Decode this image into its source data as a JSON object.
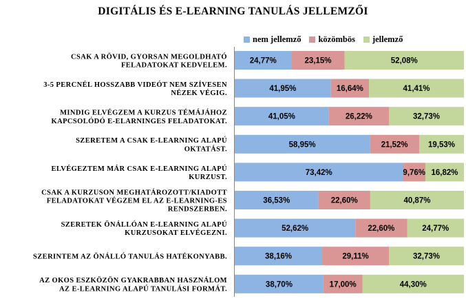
{
  "chart_data": {
    "type": "bar",
    "orientation": "horizontal",
    "stacked": "percent",
    "title": "DIGITÁLIS ÉS E-LEARNING TANULÁS JELLEMZŐI",
    "legend_position": "top",
    "grid": false,
    "xlim": [
      0,
      100
    ],
    "categories": [
      [
        "CSAK A RÖVID, GYORSAN MEGOLDHATÓ",
        "FELADATOKAT KEDVELEM."
      ],
      [
        "3-5 PERCNÉL HOSSZABB VIDEÓT NEM SZÍVESEN",
        "NÉZEK VÉGIG."
      ],
      [
        "MINDIG ELVÉGZEM A KURZUS TÉMÁJÁHOZ",
        "KAPCSOLÓDÓ E-ELARNINGES FELADATOKAT."
      ],
      [
        "SZERETEM A CSAK E-LEARNING  ALAPÚ",
        "OKTATÁST."
      ],
      [
        "ELVÉGEZTEM MÁR CSAK E-LEARNING ALAPÚ",
        "KURZUST."
      ],
      [
        "CSAK A KURZUSON MEGHATÁROZOTT/KIADOTT",
        "FELADATOKAT VÉGZEM EL AZ E-LEARNING-ES",
        "RENDSZERBEN."
      ],
      [
        "SZERETEK ÖNÁLLÓAN E-LEARNING ALAPÚ",
        "KURZUSOKAT ELVÉGEZNI."
      ],
      [
        "SZERINTEM AZ ÖNÁLLÓ TANULÁS HATÉKONYABB."
      ],
      [
        "AZ OKOS ESZKÖZÖN GYAKRABBAN HASZNÁLOM",
        "AZ E-LEARNING ALAPÚ TANULÁSI FORMÁT."
      ]
    ],
    "series": [
      {
        "name": "nem jellemző",
        "color": "#8EB4E3",
        "values": [
          24.77,
          41.95,
          41.05,
          58.95,
          73.42,
          36.53,
          52.62,
          38.16,
          38.7
        ],
        "labels": [
          "24,77%",
          "41,95%",
          "41,05%",
          "58,95%",
          "73,42%",
          "36,53%",
          "52,62%",
          "38,16%",
          "38,70%"
        ]
      },
      {
        "name": "közömbös",
        "color": "#D99694",
        "values": [
          23.15,
          16.64,
          26.22,
          21.52,
          9.76,
          22.6,
          22.6,
          29.11,
          17.0
        ],
        "labels": [
          "23,15%",
          "16,64%",
          "26,22%",
          "21,52%",
          "9,76%",
          "22,60%",
          "22,60%",
          "29,11%",
          "17,00%"
        ]
      },
      {
        "name": "jellemző",
        "color": "#C3D69B",
        "values": [
          52.08,
          41.41,
          32.73,
          19.53,
          16.82,
          40.87,
          24.77,
          32.73,
          44.3
        ],
        "labels": [
          "52,08%",
          "41,41%",
          "32,73%",
          "19,53%",
          "16,82%",
          "40,87%",
          "24,77%",
          "32,73%",
          "44,30%"
        ]
      }
    ]
  }
}
